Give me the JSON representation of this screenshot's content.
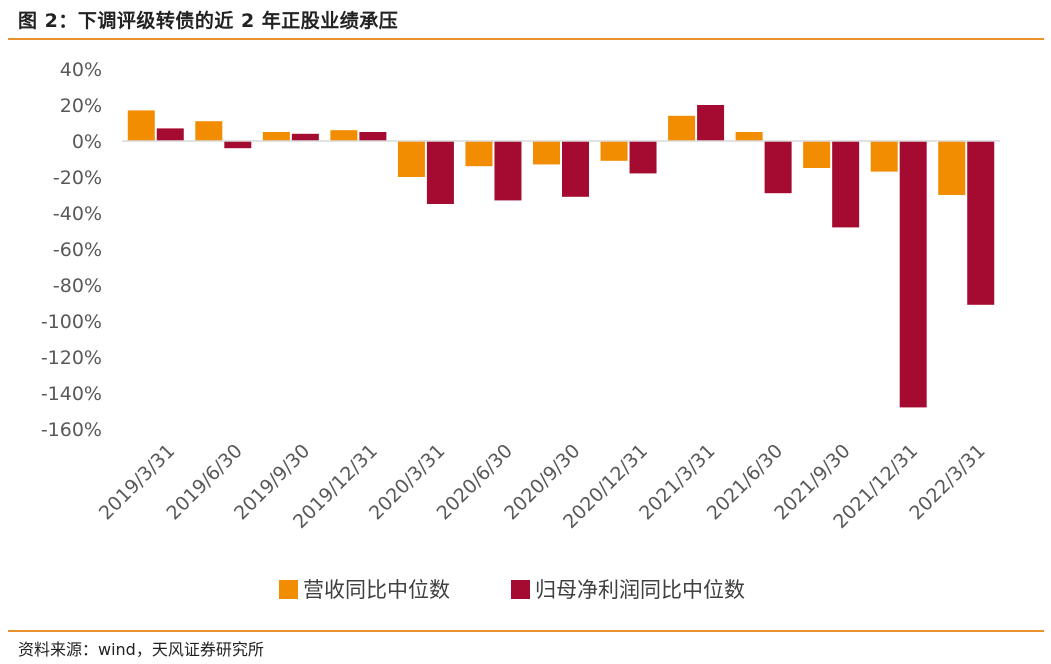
{
  "figure": {
    "title": "图 2：下调评级转债的近 2 年正股业绩承压",
    "source": "资料来源：wind，天风证券研究所"
  },
  "colors": {
    "accent_rule": "#e8912d",
    "series_revenue": "#f28c00",
    "series_profit": "#a50b30",
    "axis": "#d9d9d9"
  },
  "chart_data": {
    "type": "bar",
    "title": "",
    "xlabel": "",
    "ylabel": "",
    "ylim": [
      -160,
      40
    ],
    "yticks": [
      40,
      20,
      0,
      -20,
      -40,
      -60,
      -80,
      -100,
      -120,
      -140,
      -160
    ],
    "ytick_labels": [
      "40%",
      "20%",
      "0%",
      "-20%",
      "-40%",
      "-60%",
      "-80%",
      "-100%",
      "-120%",
      "-140%",
      "-160%"
    ],
    "categories": [
      "2019/3/31",
      "2019/6/30",
      "2019/9/30",
      "2019/12/31",
      "2020/3/31",
      "2020/6/30",
      "2020/9/30",
      "2020/12/31",
      "2021/3/31",
      "2021/6/30",
      "2021/9/30",
      "2021/12/31",
      "2022/3/31"
    ],
    "series": [
      {
        "name": "营收同比中位数",
        "color": "#f28c00",
        "values": [
          17,
          11,
          5,
          6,
          -20,
          -14,
          -13,
          -11,
          14,
          5,
          -15,
          -17,
          -30
        ]
      },
      {
        "name": "归母净利润同比中位数",
        "color": "#a50b30",
        "values": [
          7,
          -4,
          4,
          5,
          -35,
          -33,
          -31,
          -18,
          20,
          -29,
          -48,
          -148,
          -91
        ]
      }
    ],
    "legend_position": "bottom-center",
    "grid": false
  }
}
